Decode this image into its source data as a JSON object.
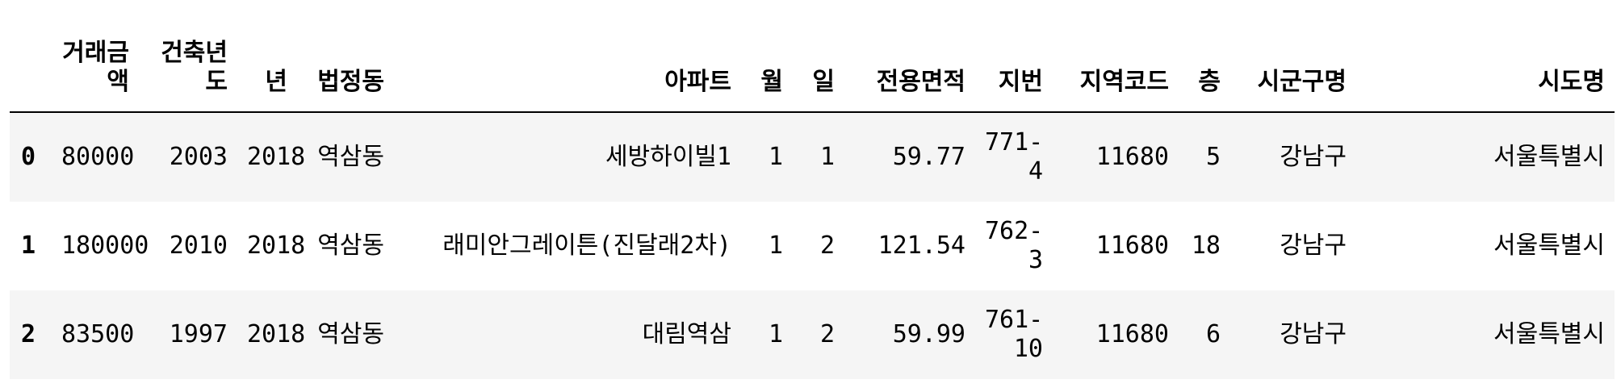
{
  "table": {
    "columns": [
      "",
      "거래금액",
      "건축년도",
      "년",
      "법정동",
      "아파트",
      "월",
      "일",
      "전용면적",
      "지번",
      "지역코드",
      "층",
      "시군구명",
      "시도명"
    ],
    "rows": [
      [
        "0",
        "80000",
        "2003",
        "2018",
        "역삼동",
        "세방하이빌1",
        "1",
        "1",
        "59.77",
        "771-4",
        "11680",
        "5",
        "강남구",
        "서울특별시"
      ],
      [
        "1",
        "180000",
        "2010",
        "2018",
        "역삼동",
        "래미안그레이튼(진달래2차)",
        "1",
        "2",
        "121.54",
        "762-3",
        "11680",
        "18",
        "강남구",
        "서울특별시"
      ],
      [
        "2",
        "83500",
        "1997",
        "2018",
        "역삼동",
        "대림역삼",
        "1",
        "2",
        "59.99",
        "761-10",
        "11680",
        "6",
        "강남구",
        "서울특별시"
      ]
    ]
  }
}
